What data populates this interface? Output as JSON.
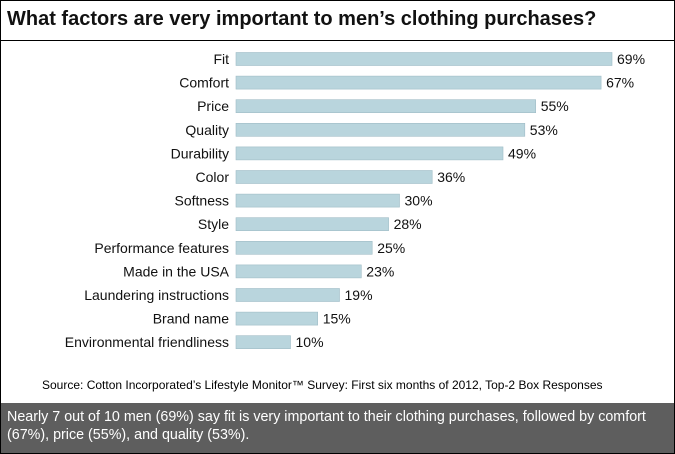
{
  "chart_data": {
    "type": "bar",
    "orientation": "horizontal",
    "title": "What factors are very important to men’s clothing purchases?",
    "categories": [
      "Fit",
      "Comfort",
      "Price",
      "Quality",
      "Durability",
      "Color",
      "Softness",
      "Style",
      "Performance features",
      "Made in the USA",
      "Laundering instructions",
      "Brand name",
      "Environmental friendliness"
    ],
    "values": [
      69,
      67,
      55,
      53,
      49,
      36,
      30,
      28,
      25,
      23,
      19,
      15,
      10
    ],
    "value_labels": [
      "69%",
      "67%",
      "55%",
      "53%",
      "49%",
      "36%",
      "30%",
      "28%",
      "25%",
      "23%",
      "19%",
      "15%",
      "10%"
    ],
    "xlim": [
      0,
      69
    ],
    "bar_color": "#b9d5dd",
    "bar_border_color": "#9fbcc6"
  },
  "source": "Source: Cotton Incorporated’s  Lifestyle Monitor™ Survey:  First six months of 2012, Top-2  Box Responses",
  "summary": "Nearly 7 out of 10 men (69%) say fit is very important to their clothing purchases, followed by comfort (67%), price (55%), and quality (53%).",
  "colors": {
    "summary_background": "#5e5e5e",
    "summary_text": "#ffffff"
  }
}
